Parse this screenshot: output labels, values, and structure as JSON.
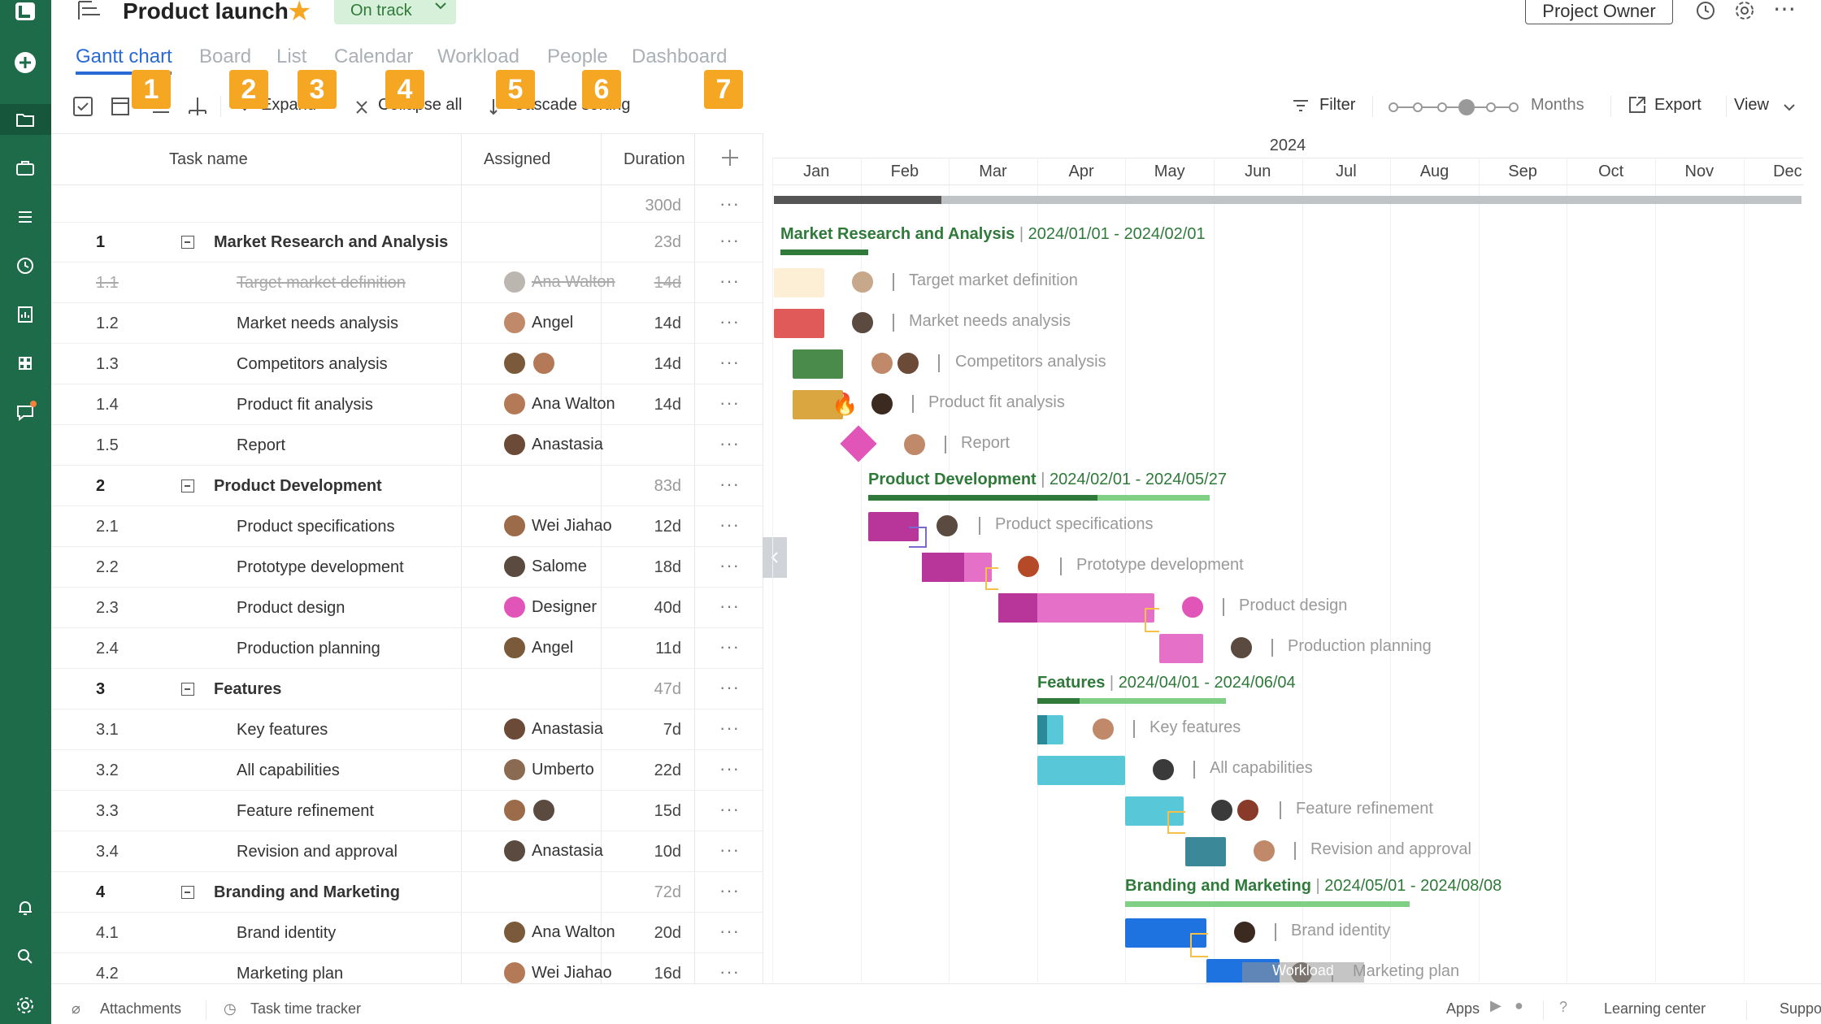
{
  "app": {
    "project_title": "Product launch",
    "status": "On track",
    "owner_button": "Project Owner"
  },
  "tabs": [
    "Gantt chart",
    "Board",
    "List",
    "Calendar",
    "Workload",
    "People",
    "Dashboard"
  ],
  "badges": [
    "1",
    "2",
    "3",
    "4",
    "5",
    "6",
    "7"
  ],
  "toolbar": {
    "expand_label": "Expand",
    "collapse_label": "Collapse all",
    "cascade_label": "Cascade sorting",
    "filter_label": "Filter",
    "zoom_label": "Months",
    "export_label": "Export",
    "view_label": "View"
  },
  "grid": {
    "columns": [
      "Task name",
      "Assigned",
      "Duration"
    ],
    "total_duration": "300d",
    "rows": [
      {
        "num": "1",
        "name": "Market Research and Analysis",
        "assigned": "",
        "duration": "23d",
        "group": true
      },
      {
        "num": "1.1",
        "name": "Target market definition",
        "assigned": "Ana Walton",
        "duration": "14d",
        "done": true
      },
      {
        "num": "1.2",
        "name": "Market needs analysis",
        "assigned": "Angel",
        "duration": "14d"
      },
      {
        "num": "1.3",
        "name": "Competitors analysis",
        "assigned": "",
        "duration": "14d"
      },
      {
        "num": "1.4",
        "name": "Product fit analysis",
        "assigned": "Ana Walton",
        "duration": "14d"
      },
      {
        "num": "1.5",
        "name": "Report",
        "assigned": "Anastasia",
        "duration": ""
      },
      {
        "num": "2",
        "name": "Product Development",
        "assigned": "",
        "duration": "83d",
        "group": true
      },
      {
        "num": "2.1",
        "name": "Product specifications",
        "assigned": "Wei Jiahao",
        "duration": "12d"
      },
      {
        "num": "2.2",
        "name": "Prototype development",
        "assigned": "Salome",
        "duration": "18d"
      },
      {
        "num": "2.3",
        "name": "Product design",
        "assigned": "Designer",
        "duration": "40d"
      },
      {
        "num": "2.4",
        "name": "Production planning",
        "assigned": "Angel",
        "duration": "11d"
      },
      {
        "num": "3",
        "name": "Features",
        "assigned": "",
        "duration": "47d",
        "group": true
      },
      {
        "num": "3.1",
        "name": "Key features",
        "assigned": "Anastasia",
        "duration": "7d"
      },
      {
        "num": "3.2",
        "name": "All capabilities",
        "assigned": "Umberto",
        "duration": "22d"
      },
      {
        "num": "3.3",
        "name": "Feature refinement",
        "assigned": "",
        "duration": "15d"
      },
      {
        "num": "3.4",
        "name": "Revision and approval",
        "assigned": "Anastasia",
        "duration": "10d"
      },
      {
        "num": "4",
        "name": "Branding and Marketing",
        "assigned": "",
        "duration": "72d",
        "group": true
      },
      {
        "num": "4.1",
        "name": "Brand identity",
        "assigned": "Ana Walton",
        "duration": "20d"
      },
      {
        "num": "4.2",
        "name": "Marketing plan",
        "assigned": "Wei Jiahao",
        "duration": "16d"
      }
    ]
  },
  "timeline": {
    "year": "2024",
    "months": [
      "Jan",
      "Feb",
      "Mar",
      "Apr",
      "May",
      "Jun",
      "Jul",
      "Aug",
      "Sep",
      "Oct",
      "Nov",
      "Dec"
    ],
    "groups": [
      {
        "name": "Market Research and Analysis",
        "dates": "2024/01/01 - 2024/02/01"
      },
      {
        "name": "Product Development",
        "dates": "2024/02/01 - 2024/05/27"
      },
      {
        "name": "Features",
        "dates": "2024/04/01 - 2024/06/04"
      },
      {
        "name": "Branding and Marketing",
        "dates": "2024/05/01 - 2024/08/08"
      }
    ],
    "workload_label": "Workload"
  },
  "bottom": {
    "attachments": "Attachments",
    "time_tracker": "Task time tracker",
    "apps": "Apps",
    "learning": "Learning center",
    "support": "Support"
  },
  "colors": {
    "sidebar": "#1e6b4a",
    "accent": "#2a6ad6",
    "badge": "#f5a623",
    "group_green": "#2f7a3a"
  }
}
